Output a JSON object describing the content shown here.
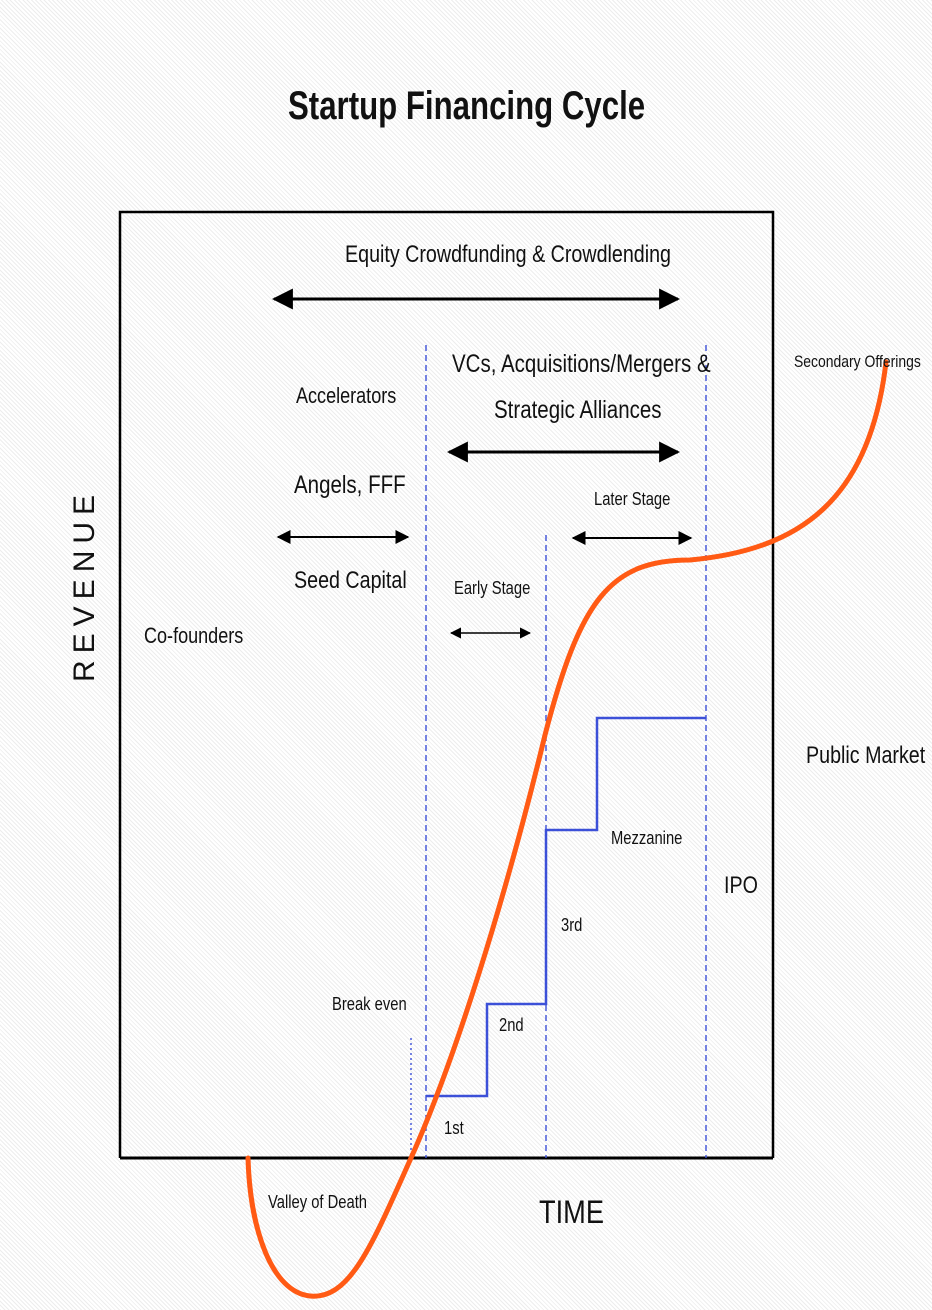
{
  "title": "Startup Financing Cycle",
  "axes": {
    "y_label": "REVENUE",
    "x_label": "TIME"
  },
  "labels": {
    "equity_crowdfunding": "Equity Crowdfunding & Crowdlending",
    "vcs_line1": "VCs, Acquisitions/Mergers &",
    "vcs_line2": "Strategic Alliances",
    "accelerators": "Accelerators",
    "angels": "Angels, FFF",
    "seed_capital": "Seed Capital",
    "early_stage": "Early Stage",
    "later_stage": "Later Stage",
    "co_founders": "Co-founders",
    "secondary_offerings": "Secondary Offerings",
    "public_market": "Public Market",
    "mezzanine": "Mezzanine",
    "ipo": "IPO",
    "round_3rd": "3rd",
    "round_2nd": "2nd",
    "round_1st": "1st",
    "break_even": "Break even",
    "valley_of_death": "Valley of Death"
  },
  "colors": {
    "curve": "#ff5a14",
    "steps": "#3c50d8",
    "dashed_guides": "#3c50d8",
    "arrows": "#000000",
    "frame": "#000000"
  }
}
